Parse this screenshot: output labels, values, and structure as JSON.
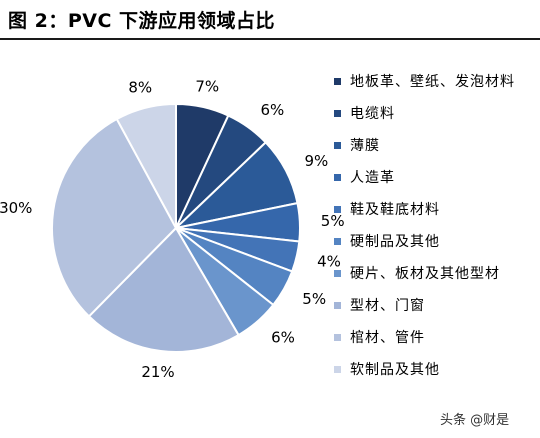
{
  "title": "图 2：PVC 下游应用领域占比",
  "chart_data": {
    "type": "pie",
    "start_angle_deg": 0,
    "direction": "clockwise",
    "slices": [
      {
        "label": "地板革、壁纸、发泡材料",
        "value": 7,
        "display": "7%",
        "color": "#1f3a68"
      },
      {
        "label": "电缆料",
        "value": 6,
        "display": "6%",
        "color": "#24497f"
      },
      {
        "label": "薄膜",
        "value": 9,
        "display": "9%",
        "color": "#2b5a98"
      },
      {
        "label": "人造革",
        "value": 5,
        "display": "5%",
        "color": "#3567ab"
      },
      {
        "label": "鞋及鞋底材料",
        "value": 4,
        "display": "4%",
        "color": "#4374b7"
      },
      {
        "label": "硬制品及其他",
        "value": 5,
        "display": "5%",
        "color": "#5484c2"
      },
      {
        "label": "硬片、板材及其他型材",
        "value": 6,
        "display": "6%",
        "color": "#6a95cc"
      },
      {
        "label": "型材、门窗",
        "value": 21,
        "display": "21%",
        "color": "#a3b5d8"
      },
      {
        "label": "棺材、管件",
        "value": 30,
        "display": "30%",
        "color": "#b4c2de"
      },
      {
        "label": "软制品及其他",
        "value": 8,
        "display": "8%",
        "color": "#ccd5e8"
      }
    ],
    "legend_placement": "right"
  },
  "watermark": "头条 @财是"
}
